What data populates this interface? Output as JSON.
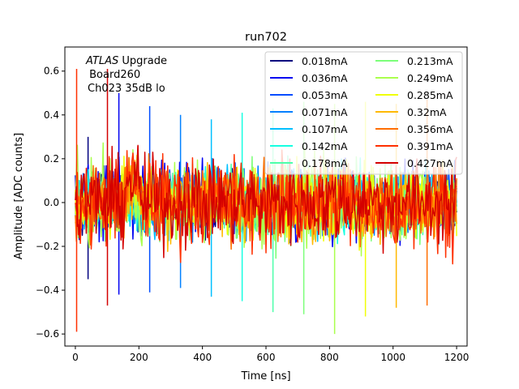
{
  "chart_data": {
    "type": "line",
    "title": "run702",
    "xlabel": "Time [ns]",
    "ylabel": "Amplitude [ADC counts]",
    "xlim": [
      -33,
      1233
    ],
    "ylim": [
      -0.655,
      0.71
    ],
    "xticks": [
      0,
      200,
      400,
      600,
      800,
      1000,
      1200
    ],
    "xtick_labels": [
      "0",
      "200",
      "400",
      "600",
      "800",
      "1000",
      "1200"
    ],
    "yticks": [
      -0.6,
      -0.4,
      -0.2,
      0.0,
      0.2,
      0.4,
      0.6
    ],
    "ytick_labels": [
      "−0.6",
      "−0.4",
      "−0.2",
      "0.0",
      "0.2",
      "0.4",
      "0.6"
    ],
    "grid": false,
    "legend_position": "top-right",
    "legend_columns": 2,
    "annotation": {
      "line1_italic": "ATLAS",
      "line1_rest": " Upgrade",
      "line2": " Board260",
      "line3": "Ch023 35dB lo"
    },
    "x_range_samples": [
      0,
      1200
    ],
    "approx_sample_spacing_ns": 3.125,
    "noise_description": "dense noise waveforms spanning about ±0.4 ADC counts with a burst near 160-200 ns",
    "series": [
      {
        "name": "0.018mA",
        "color": "#00007f",
        "low": -0.35,
        "high": 0.3
      },
      {
        "name": "0.036mA",
        "color": "#0000f1",
        "low": -0.42,
        "high": 0.5
      },
      {
        "name": "0.053mA",
        "color": "#004cff",
        "low": -0.41,
        "high": 0.44
      },
      {
        "name": "0.071mA",
        "color": "#0080ff",
        "low": -0.39,
        "high": 0.4
      },
      {
        "name": "0.107mA",
        "color": "#00c0ff",
        "low": -0.43,
        "high": 0.38
      },
      {
        "name": "0.142mA",
        "color": "#16ffe1",
        "low": -0.45,
        "high": 0.41
      },
      {
        "name": "0.178mA",
        "color": "#4dffaa",
        "low": -0.5,
        "high": 0.43
      },
      {
        "name": "0.213mA",
        "color": "#7cff79",
        "low": -0.51,
        "high": 0.46
      },
      {
        "name": "0.249mA",
        "color": "#aaff4d",
        "low": -0.6,
        "high": 0.45
      },
      {
        "name": "0.285mA",
        "color": "#f0ff07",
        "low": -0.52,
        "high": 0.46
      },
      {
        "name": "0.32mA",
        "color": "#ffb900",
        "low": -0.48,
        "high": 0.45
      },
      {
        "name": "0.356mA",
        "color": "#ff6e00",
        "low": -0.47,
        "high": 0.47
      },
      {
        "name": "0.391mA",
        "color": "#ff3000",
        "low": -0.59,
        "high": 0.61
      },
      {
        "name": "0.427mA",
        "color": "#d40000",
        "low": -0.47,
        "high": 0.61
      }
    ]
  }
}
